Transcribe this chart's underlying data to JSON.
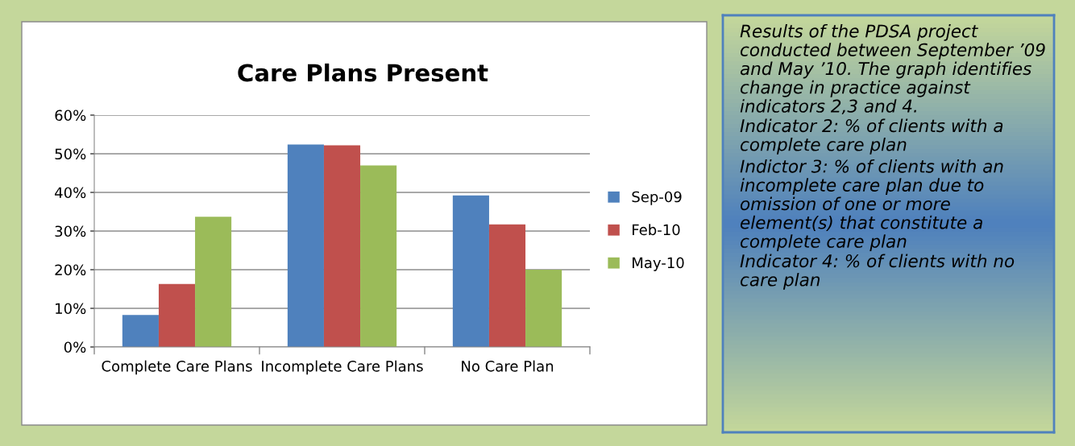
{
  "chart_data": {
    "type": "bar",
    "title": "Care Plans Present",
    "categories": [
      "Complete Care Plans",
      "Incomplete Care Plans",
      "No Care Plan"
    ],
    "series": [
      {
        "name": "Sep-09",
        "color": "#4f81bd",
        "values": [
          8.3,
          52.4,
          39.2
        ]
      },
      {
        "name": "Feb-10",
        "color": "#c0504d",
        "values": [
          16.3,
          52.2,
          31.7
        ]
      },
      {
        "name": "May-10",
        "color": "#9bbb59",
        "values": [
          33.7,
          47.0,
          20.0
        ]
      }
    ],
    "ylim": [
      0,
      60
    ],
    "yticks": [
      {
        "value": 0,
        "label": "0%"
      },
      {
        "value": 10,
        "label": "10%"
      },
      {
        "value": 20,
        "label": "20%"
      },
      {
        "value": 30,
        "label": "30%"
      },
      {
        "value": 40,
        "label": "40%"
      },
      {
        "value": 50,
        "label": "50%"
      },
      {
        "value": 60,
        "label": "60%"
      }
    ],
    "grid": "y",
    "legend": "right",
    "annotations": [
      "Results of the PDSA project conducted between September ’09 and May ’10. The graph identifies change in practice against indicators 2,3 and 4.",
      "Indicator 2: % of clients with a complete care plan",
      "Indictor 3: % of clients with an incomplete care plan due to omission of one or more element(s) that constitute a complete care plan",
      "Indicator 4: % of clients with no care plan"
    ]
  }
}
